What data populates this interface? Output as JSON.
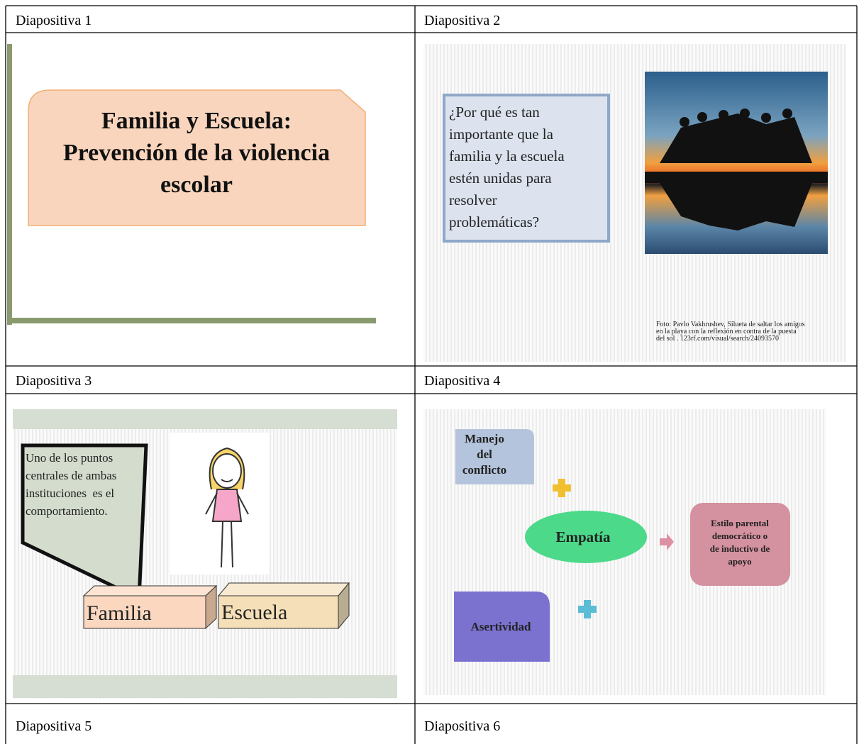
{
  "table": {
    "cells": [
      {
        "label": "Diapositiva 1",
        "slide": {
          "title": [
            "Familia y Escuela:",
            "Prevención de la violencia",
            "escolar"
          ]
        }
      },
      {
        "label": "Diapositiva 2",
        "slide": {
          "question": [
            "¿Por qué es tan",
            "importante que la",
            "familia y la escuela",
            "estén unidas para",
            "resolver",
            "problemáticas?"
          ],
          "caption": [
            "Foto: Pavlo Vakhrushev, Silueta de saltar los amigos",
            "en la playa con la reflexión en contra de la puesta",
            "del sol . 123rf.com/visual/search/24093570"
          ]
        }
      },
      {
        "label": "Diapositiva 3",
        "slide": {
          "note": [
            "Uno de los puntos",
            "centrales de ambas",
            "instituciones  es el",
            "comportamiento."
          ],
          "boxes": [
            "Familia",
            "Escuela"
          ]
        }
      },
      {
        "label": "Diapositiva 4",
        "slide": {
          "nodes": [
            [
              "Manejo",
              "del",
              "conflicto"
            ],
            [
              "Empatía"
            ],
            [
              "Estilo parental",
              "democrático o",
              "de inductivo de",
              "apoyo"
            ],
            [
              "Asertividad"
            ]
          ]
        }
      },
      {
        "label": "Diapositiva 5"
      },
      {
        "label": "Diapositiva 6"
      }
    ]
  }
}
